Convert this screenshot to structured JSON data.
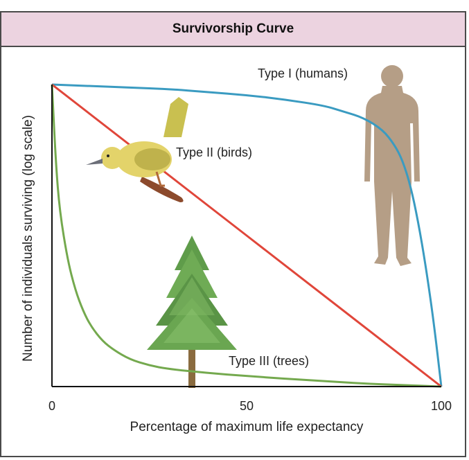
{
  "chart_data": {
    "type": "line",
    "title": "Survivorship Curve",
    "xlabel": "Percentage of maximum life expectancy",
    "ylabel": "Number of individuals surviving (log scale)",
    "xlim": [
      0,
      100
    ],
    "ylim": [
      0,
      1
    ],
    "x_ticks": [
      "0",
      "50",
      "100"
    ],
    "y_scale": "log",
    "grid": false,
    "series": [
      {
        "name": "Type I (humans)",
        "color": "#3a9bc1",
        "icon": "human-silhouette",
        "x": [
          0,
          10,
          20,
          30,
          40,
          50,
          60,
          70,
          75,
          80,
          85,
          88,
          90,
          92,
          94,
          96,
          98,
          100
        ],
        "y": [
          1.0,
          0.995,
          0.99,
          0.985,
          0.975,
          0.965,
          0.95,
          0.93,
          0.91,
          0.89,
          0.85,
          0.8,
          0.75,
          0.67,
          0.55,
          0.4,
          0.22,
          0.0
        ]
      },
      {
        "name": "Type II (birds)",
        "color": "#e0463a",
        "icon": "bird-on-branch",
        "x": [
          0,
          100
        ],
        "y": [
          1.0,
          0.0
        ]
      },
      {
        "name": "Type III (trees)",
        "color": "#74a94e",
        "icon": "pine-tree",
        "x": [
          0,
          1,
          2,
          4,
          6,
          8,
          10,
          13,
          16,
          20,
          25,
          30,
          40,
          50,
          60,
          70,
          80,
          90,
          100
        ],
        "y": [
          1.0,
          0.74,
          0.58,
          0.42,
          0.32,
          0.25,
          0.2,
          0.15,
          0.12,
          0.09,
          0.07,
          0.058,
          0.045,
          0.035,
          0.026,
          0.018,
          0.01,
          0.005,
          0.0
        ]
      }
    ]
  }
}
